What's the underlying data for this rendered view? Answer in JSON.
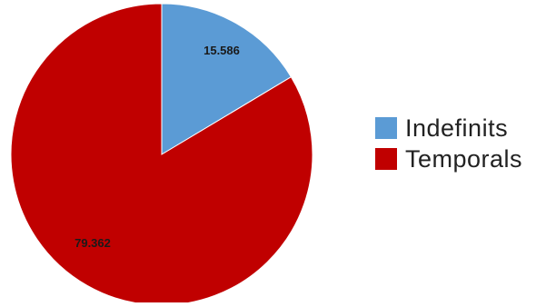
{
  "chart_data": {
    "type": "pie",
    "title": "",
    "slices": [
      {
        "label": "Indefinits",
        "value": 15.586,
        "value_label": "15.586",
        "color": "#5b9bd5"
      },
      {
        "label": "Temporals",
        "value": 79.362,
        "value_label": "79.362",
        "color": "#c00000"
      }
    ],
    "start_angle": "12 o'clock",
    "direction": "clockwise",
    "legend_position": "right"
  }
}
